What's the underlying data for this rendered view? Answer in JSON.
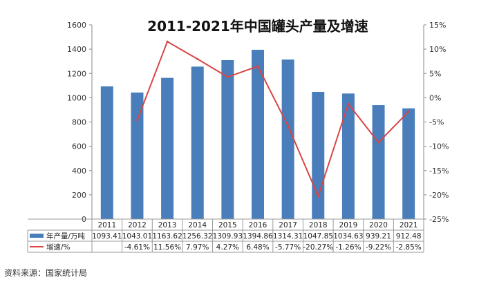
{
  "chart_data": {
    "type": "bar+line",
    "title": "2011-2021年中国罐头产量及增速",
    "categories": [
      "2011",
      "2012",
      "2013",
      "2014",
      "2015",
      "2016",
      "2017",
      "2018",
      "2019",
      "2020",
      "2021"
    ],
    "series": [
      {
        "name": "年产量/万吨",
        "type": "bar",
        "axis": "left",
        "color": "#4a7ebb",
        "values": [
          1093.41,
          1043.01,
          1163.62,
          1256.32,
          1309.93,
          1394.86,
          1314.31,
          1047.85,
          1034.63,
          939.21,
          912.48
        ],
        "labels": [
          "1093.41",
          "1043.01",
          "1163.62",
          "1256.32",
          "1309.93",
          "1394.86",
          "1314.31",
          "1047.85",
          "1034.63",
          "939.21",
          "912.48"
        ]
      },
      {
        "name": "增速/%",
        "type": "line",
        "axis": "right",
        "color": "#d94545",
        "values": [
          null,
          -4.61,
          11.56,
          7.97,
          4.27,
          6.48,
          -5.77,
          -20.27,
          -1.26,
          -9.22,
          -2.85
        ],
        "labels": [
          "",
          "-4.61%",
          "11.56%",
          "7.97%",
          "4.27%",
          "6.48%",
          "-5.77%",
          "-20.27%",
          "-1.26%",
          "-9.22%",
          "-2.85%"
        ]
      }
    ],
    "left_axis": {
      "ylim": [
        0,
        1600
      ],
      "ticks": [
        "0",
        "200",
        "400",
        "600",
        "800",
        "1000",
        "1200",
        "1400",
        "1600"
      ]
    },
    "right_axis": {
      "ylim": [
        -25,
        15
      ],
      "ticks": [
        "-25%",
        "-20%",
        "-15%",
        "-10%",
        "-5%",
        "0%",
        "5%",
        "10%",
        "15%"
      ]
    },
    "grid": false,
    "legend": "data-table-left"
  },
  "source": "资料来源：国家统计局",
  "colors": {
    "bar": "#4a7ebb",
    "line": "#d94545",
    "axis": "#888888"
  }
}
